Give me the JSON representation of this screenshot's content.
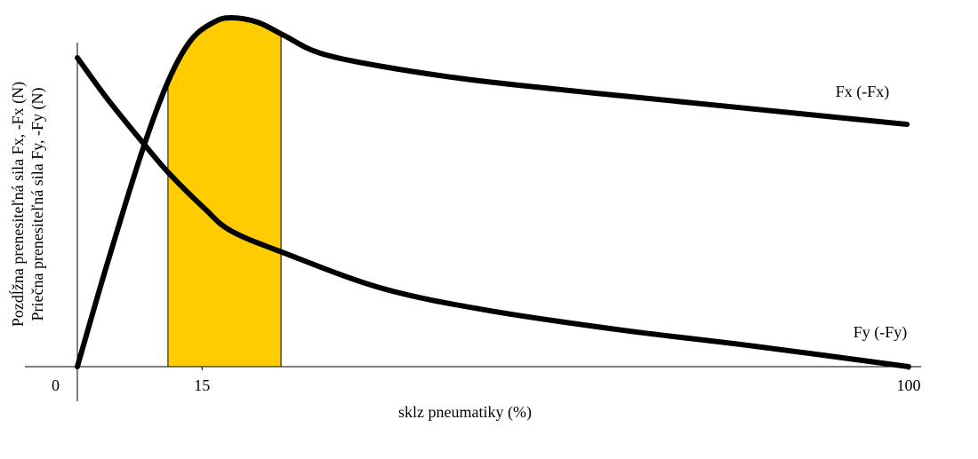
{
  "chart_data": {
    "type": "line",
    "x_label": "sklz pneumatiky (%)",
    "y_label": [
      "Pozdĺžna prenesiteľná sila  Fx, -Fx  (N)",
      "Priečna prenesiteľná sila  Fy, -Fy  (N)"
    ],
    "xlim": [
      0,
      100
    ],
    "xticks": [
      0,
      15,
      100
    ],
    "ylim": [
      0,
      100
    ],
    "highlight": {
      "range": [
        10.9,
        24.5
      ],
      "color": "#ffcc00"
    },
    "series": [
      {
        "name": "Fx (-Fx)",
        "color": "#000000",
        "x": [
          0,
          3.5,
          7.8,
          11.0,
          13.7,
          16.4,
          18.5,
          21.7,
          24.9,
          29.2,
          36.7,
          47.4,
          60.2,
          76.2,
          99.8
        ],
        "values": [
          0,
          28.6,
          61.5,
          81.8,
          93.2,
          98.2,
          99.5,
          98.2,
          94.4,
          89.4,
          85.6,
          81.8,
          78.5,
          74.7,
          69.1
        ]
      },
      {
        "name": "Fy (-Fy)",
        "color": "#000000",
        "x": [
          0,
          3.5,
          7.8,
          11.0,
          15.3,
          18.5,
          24.9,
          36.7,
          49.5,
          65.6,
          81.6,
          100
        ],
        "values": [
          88.1,
          76.7,
          64.1,
          55.2,
          45.1,
          38.7,
          32.4,
          22.3,
          16.0,
          10.4,
          5.8,
          0
        ]
      }
    ]
  }
}
